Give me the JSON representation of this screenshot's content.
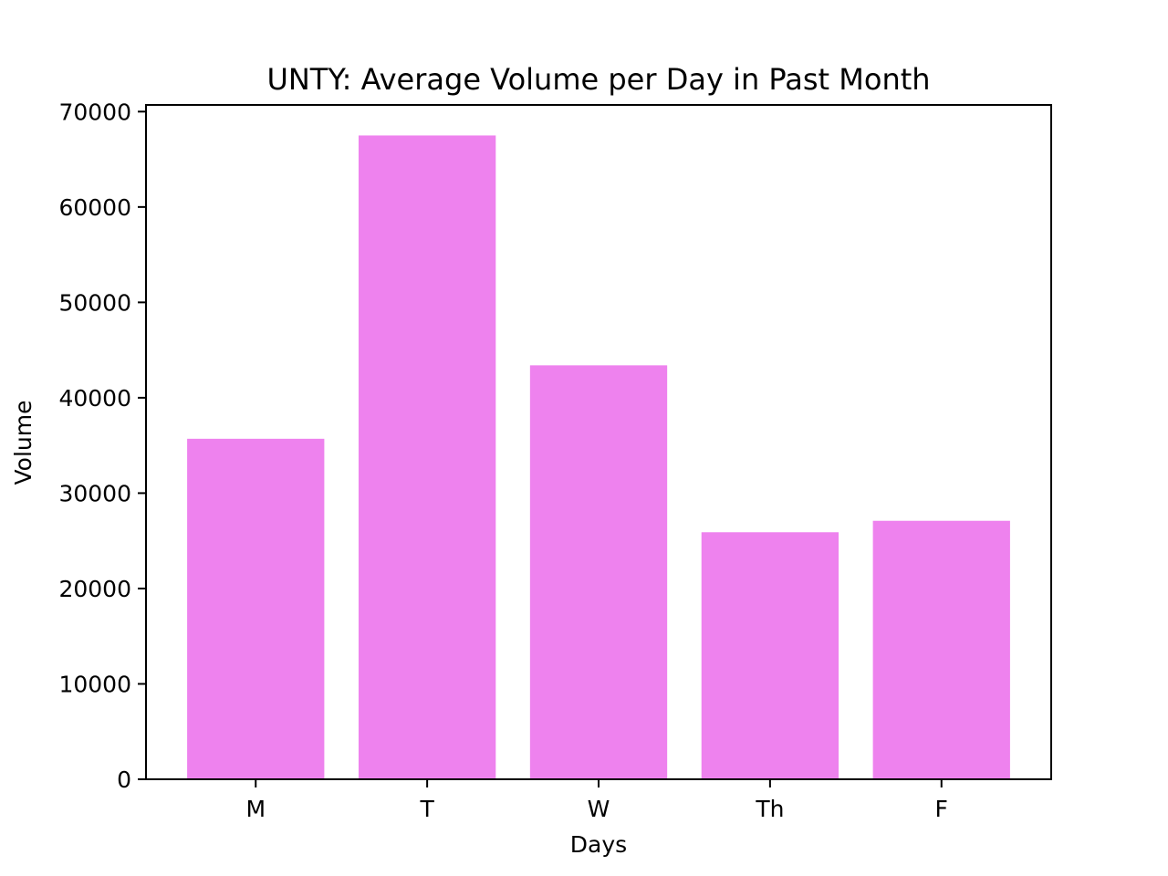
{
  "chart_data": {
    "type": "bar",
    "title": "UNTY: Average Volume per Day in Past Month",
    "xlabel": "Days",
    "ylabel": "Volume",
    "categories": [
      "M",
      "T",
      "W",
      "Th",
      "F"
    ],
    "values": [
      35700,
      67500,
      43400,
      25900,
      27100
    ],
    "ylim": [
      0,
      70700
    ],
    "yticks": [
      0,
      10000,
      20000,
      30000,
      40000,
      50000,
      60000,
      70000
    ],
    "bar_color": "#ee82ee",
    "grid": false,
    "legend": "none"
  }
}
